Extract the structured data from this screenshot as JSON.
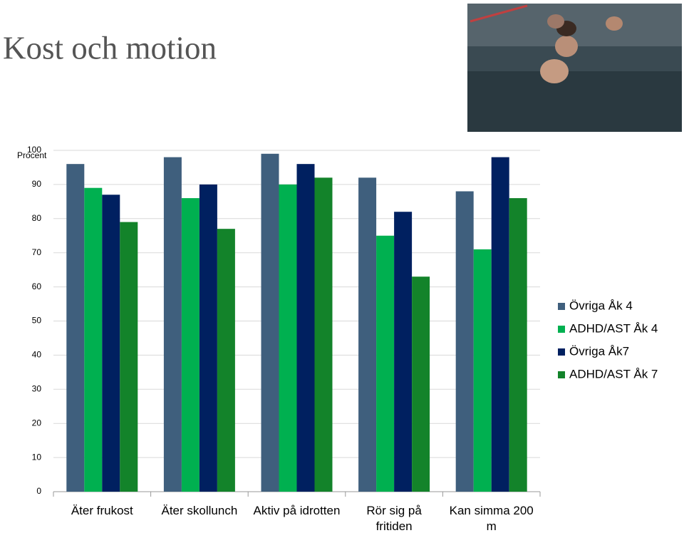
{
  "chart_data": {
    "type": "bar",
    "title": "Kost och motion",
    "y_label": "Procent",
    "categories": [
      "Äter frukost",
      "Äter skollunch",
      "Aktiv på idrotten",
      "Rör sig på fritiden",
      "Kan simma 200 m"
    ],
    "series": [
      {
        "name": "Övriga Åk 4",
        "color": "#3f5f7d",
        "values": [
          96,
          98,
          99,
          92,
          88
        ]
      },
      {
        "name": "ADHD/AST Åk 4",
        "color": "#00b050",
        "values": [
          89,
          86,
          90,
          75,
          71
        ]
      },
      {
        "name": "Övriga Åk7",
        "color": "#002060",
        "values": [
          87,
          90,
          96,
          82,
          98
        ]
      },
      {
        "name": "ADHD/AST Åk 7",
        "color": "#13832a",
        "values": [
          79,
          77,
          92,
          63,
          86
        ]
      }
    ],
    "ylim": [
      0,
      100
    ],
    "yticks": [
      0,
      10,
      20,
      30,
      40,
      50,
      60,
      70,
      80,
      90,
      100
    ],
    "grid": true,
    "legend": "right"
  }
}
